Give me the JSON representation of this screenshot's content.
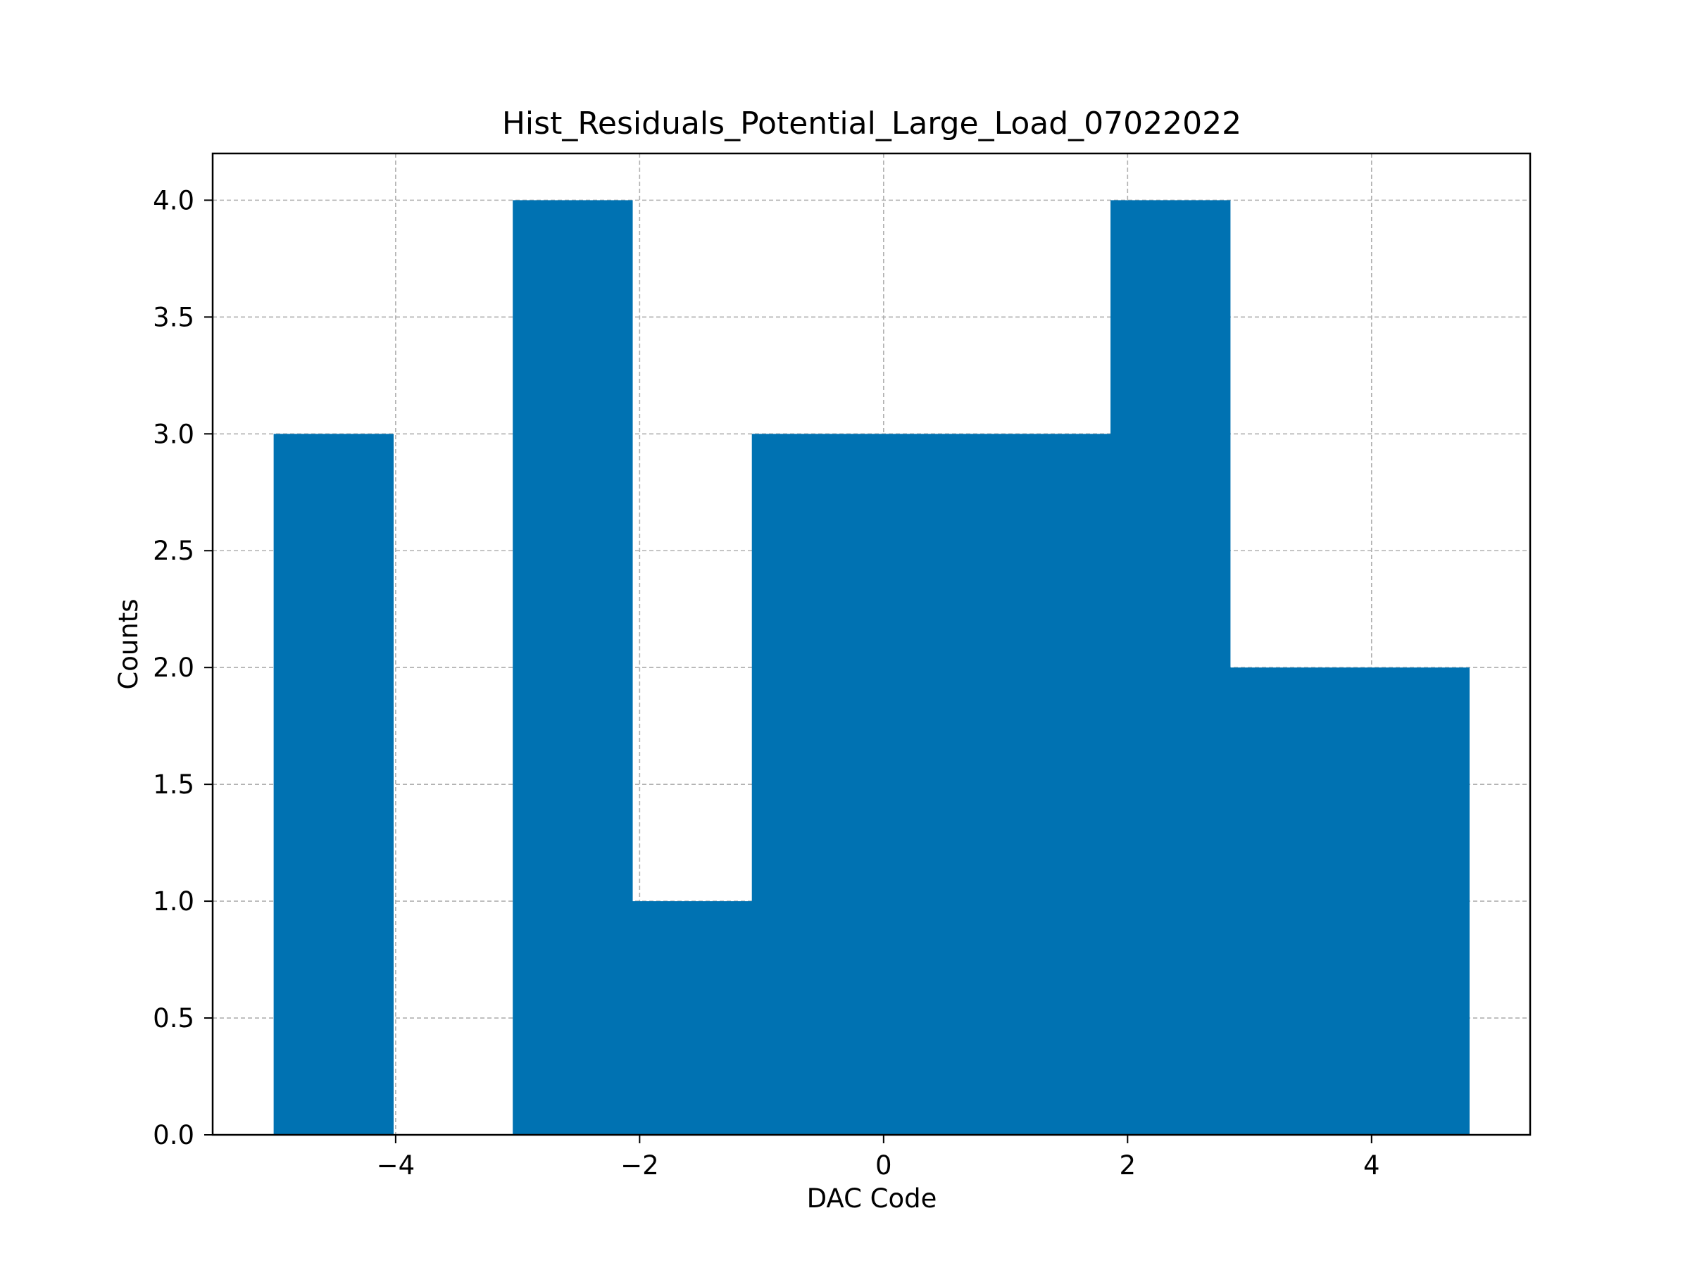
{
  "chart_data": {
    "type": "bar",
    "title": "Hist_Residuals_Potential_Large_Load_07022022",
    "xlabel": "DAC Code",
    "ylabel": "Counts",
    "bins": [
      {
        "x0": -5.0,
        "x1": -4.02,
        "count": 3
      },
      {
        "x0": -4.02,
        "x1": -3.04,
        "count": 0
      },
      {
        "x0": -3.04,
        "x1": -2.06,
        "count": 4
      },
      {
        "x0": -2.06,
        "x1": -1.08,
        "count": 1
      },
      {
        "x0": -1.08,
        "x1": -0.1,
        "count": 3
      },
      {
        "x0": -0.1,
        "x1": 0.88,
        "count": 3
      },
      {
        "x0": 0.88,
        "x1": 1.86,
        "count": 3
      },
      {
        "x0": 1.86,
        "x1": 2.84,
        "count": 4
      },
      {
        "x0": 2.84,
        "x1": 3.82,
        "count": 2
      },
      {
        "x0": 3.82,
        "x1": 4.8,
        "count": 2
      }
    ],
    "xlim": [
      -5.5,
      5.3
    ],
    "ylim": [
      0,
      4.2
    ],
    "xticks": [
      -4,
      -2,
      0,
      2,
      4
    ],
    "xtick_labels": [
      "−4",
      "−2",
      "0",
      "2",
      "4"
    ],
    "yticks": [
      0.0,
      0.5,
      1.0,
      1.5,
      2.0,
      2.5,
      3.0,
      3.5,
      4.0
    ],
    "ytick_labels": [
      "0.0",
      "0.5",
      "1.0",
      "1.5",
      "2.0",
      "2.5",
      "3.0",
      "3.5",
      "4.0"
    ],
    "grid": true,
    "bar_color": "#0072b2",
    "grid_color": "#b0b0b0"
  }
}
